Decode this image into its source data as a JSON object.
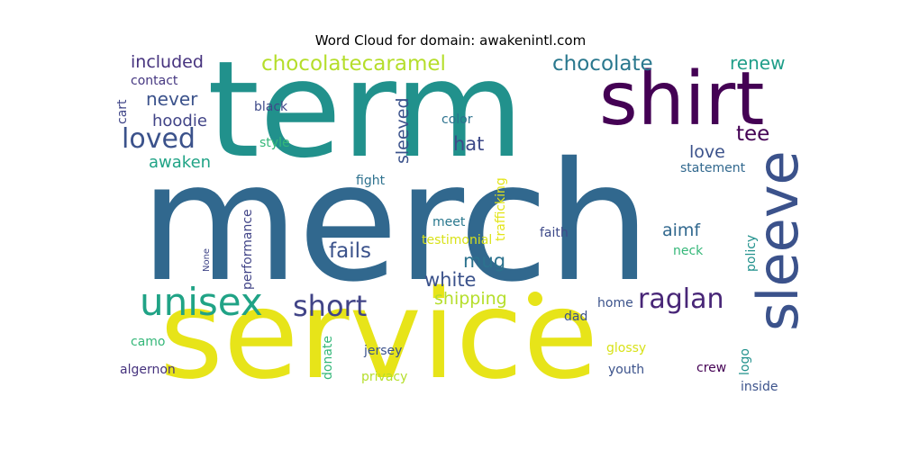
{
  "title": "Word Cloud for domain: awakenintl.com",
  "colors": {
    "term": "#21918c",
    "merch": "#31688e",
    "service": "#e7e419",
    "shirt": "#440154",
    "sleeve": "#3b528b",
    "unisex": "#20a386",
    "short": "#414487",
    "raglan": "#482677",
    "long": "#22a884"
  },
  "words": {
    "term": "term",
    "merch": "merch",
    "service": "service",
    "shirt": "shirt",
    "sleeve": "sleeve",
    "unisex": "unisex",
    "short": "short",
    "raglan": "raglan",
    "loved": "loved",
    "chocolatecaramel": "chocolatecaramel",
    "chocolate": "chocolate",
    "renew": "renew",
    "included": "included",
    "contact": "contact",
    "cart": "cart",
    "never": "never",
    "hoodie": "hoodie",
    "black": "black",
    "color": "color",
    "sleeved": "sleeved",
    "trafficking": "trafficking",
    "hat": "hat",
    "tee": "tee",
    "love": "love",
    "statement": "statement",
    "awaken": "awaken",
    "style": "style",
    "fight": "fight",
    "performance": "performance",
    "meet": "meet",
    "testimonial": "testimonial",
    "faith": "faith",
    "aimf": "aimf",
    "neck": "neck",
    "policy": "policy",
    "none": "None",
    "fails": "fails",
    "mug": "mug",
    "white": "white",
    "shipping": "shipping",
    "home": "home",
    "dad": "dad",
    "camo": "camo",
    "donate": "donate",
    "jersey": "jersey",
    "glossy": "glossy",
    "logo": "logo",
    "algernon": "algernon",
    "privacy": "privacy",
    "youth": "youth",
    "crew": "crew",
    "inside": "inside"
  }
}
